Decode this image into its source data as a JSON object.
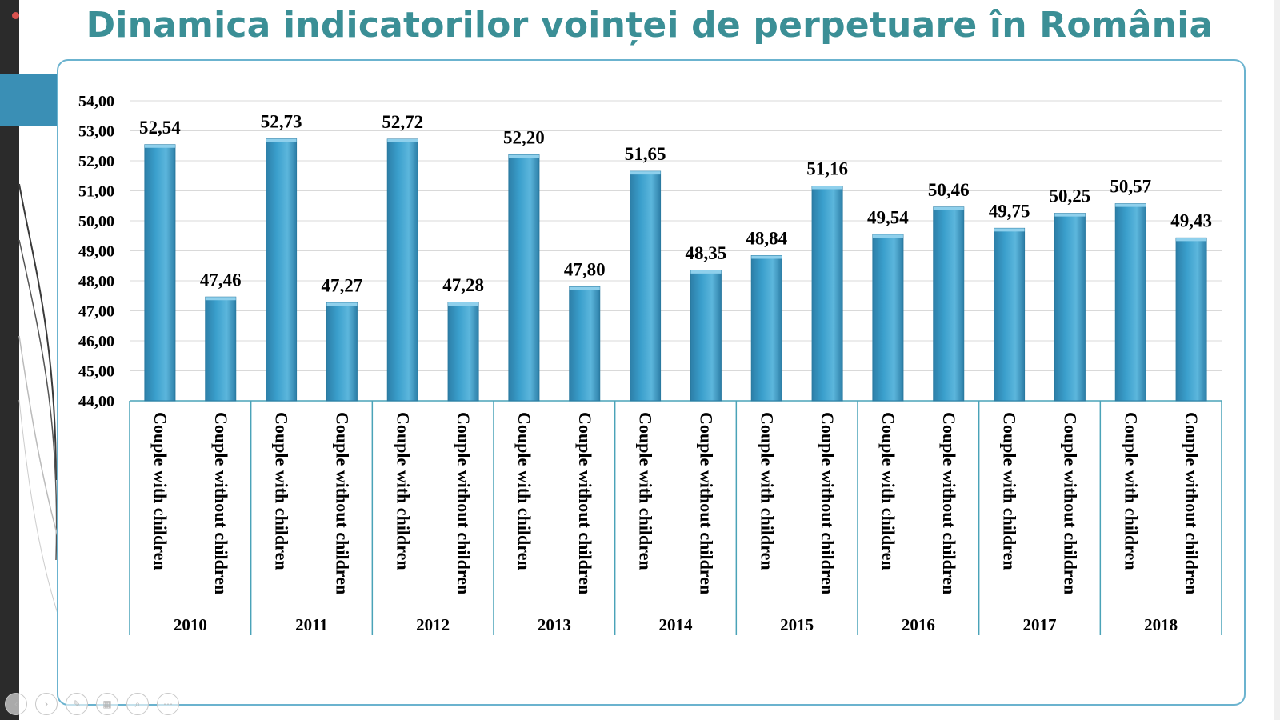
{
  "slide": {
    "title": "Dinamica indicatorilor voinței de perpetuare în România"
  },
  "colors": {
    "title": "#3b8f96",
    "bar": "#3a9fcc",
    "axis": "#4aa3b8",
    "frame": "#6bb3cf"
  },
  "controls": [
    {
      "icon": "previous-icon"
    },
    {
      "icon": "next-icon"
    },
    {
      "icon": "pen-icon"
    },
    {
      "icon": "slides-icon"
    },
    {
      "icon": "zoom-icon"
    },
    {
      "icon": "more-icon"
    }
  ],
  "chart_data": {
    "type": "bar",
    "title": "",
    "xlabel": "",
    "ylabel": "",
    "ylim": [
      44,
      54
    ],
    "yticks": [
      "44,00",
      "45,00",
      "46,00",
      "47,00",
      "48,00",
      "49,00",
      "50,00",
      "51,00",
      "52,00",
      "53,00",
      "54,00"
    ],
    "grid": true,
    "legend": "none",
    "groups": [
      "2010",
      "2011",
      "2012",
      "2013",
      "2014",
      "2015",
      "2016",
      "2017",
      "2018"
    ],
    "categories": [
      "Couple with children",
      "Couple without children"
    ],
    "values": [
      [
        52.54,
        47.46
      ],
      [
        52.73,
        47.27
      ],
      [
        52.72,
        47.28
      ],
      [
        52.2,
        47.8
      ],
      [
        51.65,
        48.35
      ],
      [
        48.84,
        51.16
      ],
      [
        49.54,
        50.46
      ],
      [
        49.75,
        50.25
      ],
      [
        50.57,
        49.43
      ]
    ],
    "value_labels": [
      [
        "52,54",
        "47,46"
      ],
      [
        "52,73",
        "47,27"
      ],
      [
        "52,72",
        "47,28"
      ],
      [
        "52,20",
        "47,80"
      ],
      [
        "51,65",
        "48,35"
      ],
      [
        "48,84",
        "51,16"
      ],
      [
        "49,54",
        "50,46"
      ],
      [
        "49,75",
        "50,25"
      ],
      [
        "50,57",
        "49,43"
      ]
    ]
  }
}
